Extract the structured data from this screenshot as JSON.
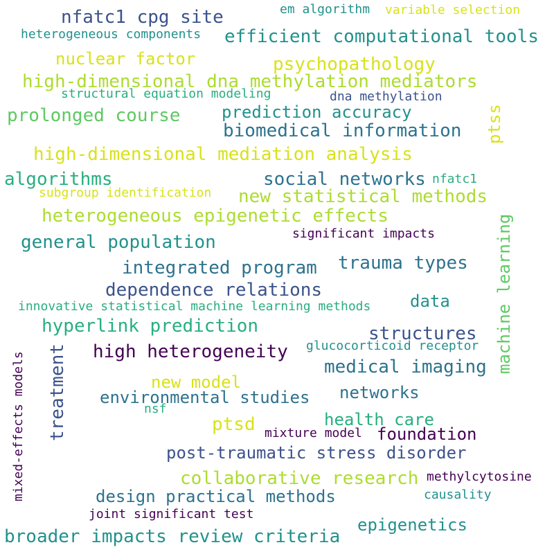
{
  "words": {
    "w01": "nfatc1 cpg site",
    "w02": "em algorithm",
    "w03": "variable selection",
    "w04": "heterogeneous components",
    "w05": "efficient computational tools",
    "w06": "nuclear factor",
    "w07": "psychopathology",
    "w08": "high-dimensional dna methylation mediators",
    "w09": "structural equation modeling",
    "w10": "dna methylation",
    "w11": "prediction accuracy",
    "w12": "prolonged course",
    "w13": "biomedical information",
    "w14": "ptss",
    "w15": "high-dimensional mediation analysis",
    "w16": "algorithms",
    "w17": "social networks",
    "w18": "nfatc1",
    "w19": "subgroup identification",
    "w20": "new statistical methods",
    "w21": "heterogeneous epigenetic effects",
    "w22": "machine learning",
    "w23": "significant impacts",
    "w24": "general population",
    "w25": "integrated program",
    "w26": "trauma types",
    "w27": "dependence relations",
    "w28": "innovative statistical machine learning methods",
    "w29": "data",
    "w30": "hyperlink prediction",
    "w31": "structures",
    "w32": "mixed-effects models",
    "w33": "treatment",
    "w34": "high heterogeneity",
    "w35": "glucocorticoid receptor",
    "w36": "medical imaging",
    "w37": "new model",
    "w38": "environmental studies",
    "w39": "networks",
    "w40": "nsf",
    "w41": "ptsd",
    "w42": "health care",
    "w43": "mixture model",
    "w44": "foundation",
    "w45": "post-traumatic stress disorder",
    "w46": "collaborative research",
    "w47": "methylcytosine",
    "w48": "design practical methods",
    "w49": "causality",
    "w50": "joint significant test",
    "w51": "epigenetics",
    "w52": "broader impacts review criteria"
  }
}
